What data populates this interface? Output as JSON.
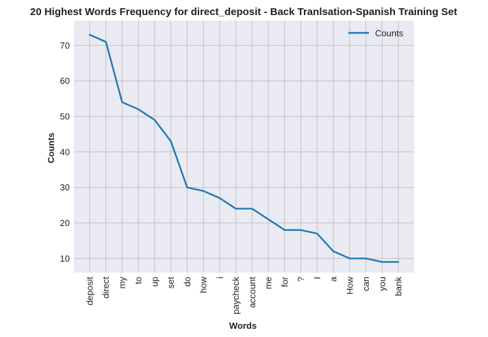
{
  "chart_data": {
    "type": "line",
    "title": "20 Highest Words Frequency for direct_deposit - Back Tranlsation-Spanish Training Set",
    "xlabel": "Words",
    "ylabel": "Counts",
    "categories": [
      "deposit",
      "direct",
      "my",
      "to",
      "up",
      "set",
      "do",
      "how",
      "i",
      "paycheck",
      "account",
      "me",
      "for",
      "?",
      "I",
      "a",
      "How",
      "can",
      "you",
      "bank"
    ],
    "series": [
      {
        "name": "Counts",
        "values": [
          73,
          71,
          54,
          52,
          49,
          43,
          30,
          29,
          27,
          24,
          24,
          21,
          18,
          18,
          17,
          12,
          10,
          10,
          9,
          9
        ],
        "color": "#1f77b4"
      }
    ],
    "yticks": [
      10,
      20,
      30,
      40,
      50,
      60,
      70
    ],
    "ylim": [
      6,
      77
    ],
    "grid": true,
    "legend_position": "upper right",
    "background_color": "#eaeaf2",
    "grid_color": "#c0c0c8"
  }
}
